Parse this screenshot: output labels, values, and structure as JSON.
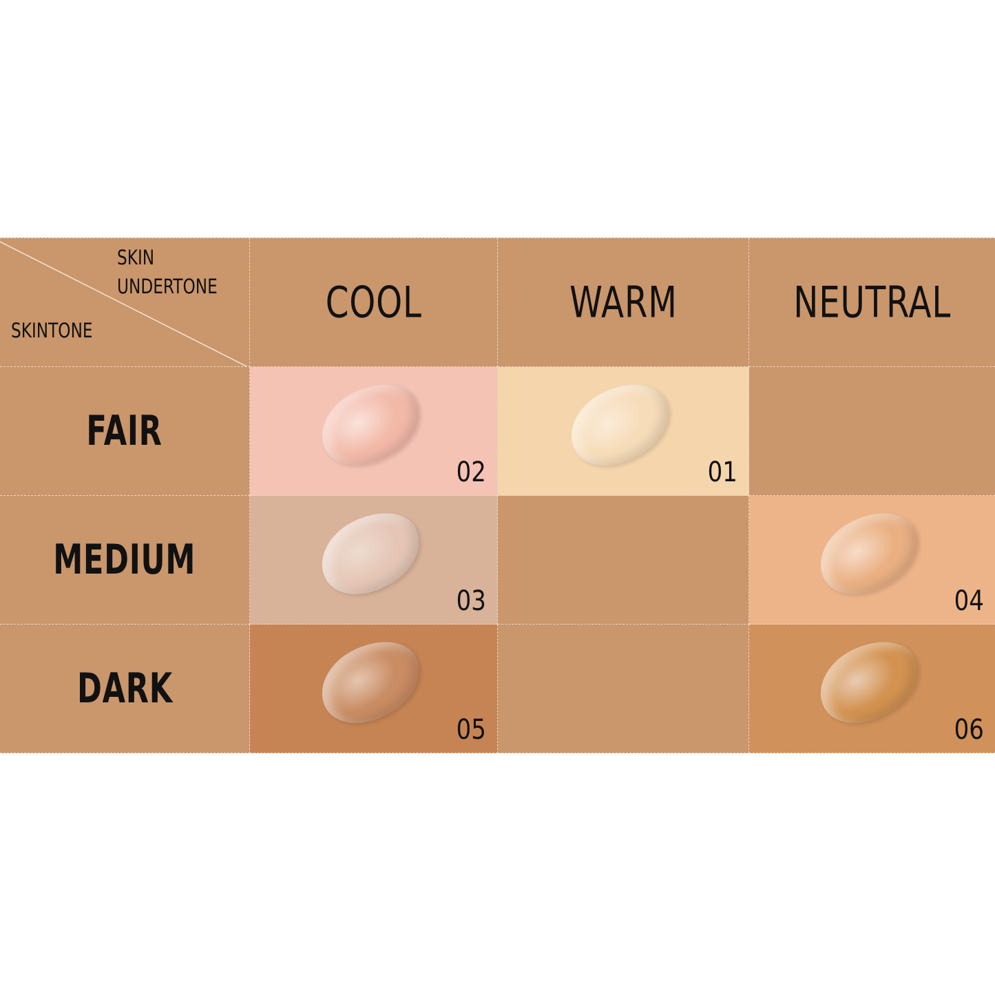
{
  "corner": {
    "top_line1": "SKIN",
    "top_line2": "UNDERTONE",
    "bottom": "SKINTONE"
  },
  "columns": [
    "COOL",
    "WARM",
    "NEUTRAL"
  ],
  "rows": [
    {
      "label": "FAIR",
      "cells": [
        {
          "shade": "02",
          "bg": "#f5c3b4",
          "swatch": "#f2b9a8"
        },
        {
          "shade": "01",
          "bg": "#f4d5ac",
          "swatch": "#f6dcb8"
        },
        null
      ]
    },
    {
      "label": "MEDIUM",
      "cells": [
        {
          "shade": "03",
          "bg": "#d8b399",
          "swatch": "#e5c6b6"
        },
        null,
        {
          "shade": "04",
          "bg": "#eeb489",
          "swatch": "#eab083"
        }
      ]
    },
    {
      "label": "DARK",
      "cells": [
        {
          "shade": "05",
          "bg": "#c68455",
          "swatch": "#c98c63"
        },
        null,
        {
          "shade": "06",
          "bg": "#d0915a",
          "swatch": "#d39250"
        }
      ]
    }
  ],
  "colors": {
    "grid_base": "#ca966b",
    "text": "#111111",
    "divider": "#ead8c8"
  }
}
